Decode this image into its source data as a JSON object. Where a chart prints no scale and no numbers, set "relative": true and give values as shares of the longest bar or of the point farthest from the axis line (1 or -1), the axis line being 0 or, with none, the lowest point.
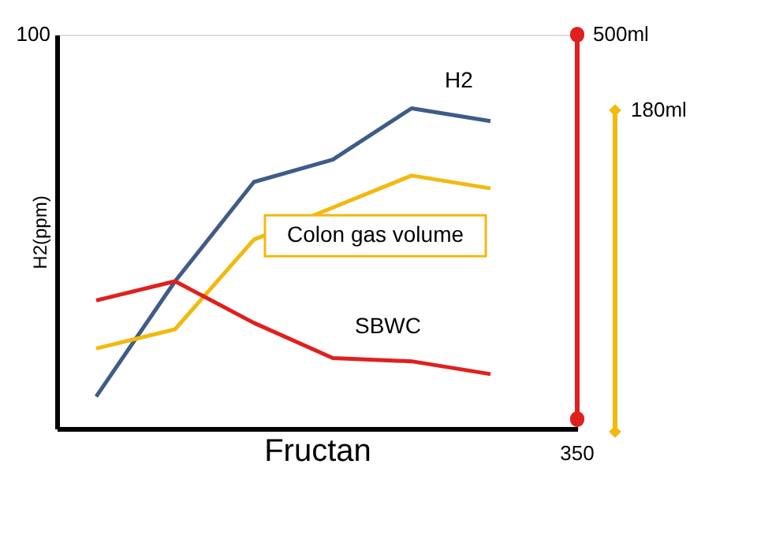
{
  "chart_data": {
    "type": "line",
    "relative": true,
    "xlabel": "Fructan",
    "ylabel": "H2(ppm)",
    "categories": [
      null,
      null,
      null,
      null,
      null,
      null
    ],
    "series": [
      {
        "name": "H2",
        "color": "#3e5c87",
        "values": [
          0.1,
          0.46,
          0.77,
          0.84,
          1.0,
          0.96
        ]
      },
      {
        "name": "Colon gas volume",
        "color": "#f2b90f",
        "values": [
          0.25,
          0.31,
          0.59,
          0.69,
          0.79,
          0.75
        ]
      },
      {
        "name": "SBWC",
        "color": "#e0201e",
        "values": [
          0.4,
          0.46,
          0.33,
          0.22,
          0.21,
          0.17
        ]
      }
    ],
    "annotations": [
      "100",
      "500ml",
      "180ml",
      "350"
    ],
    "grid": false
  }
}
